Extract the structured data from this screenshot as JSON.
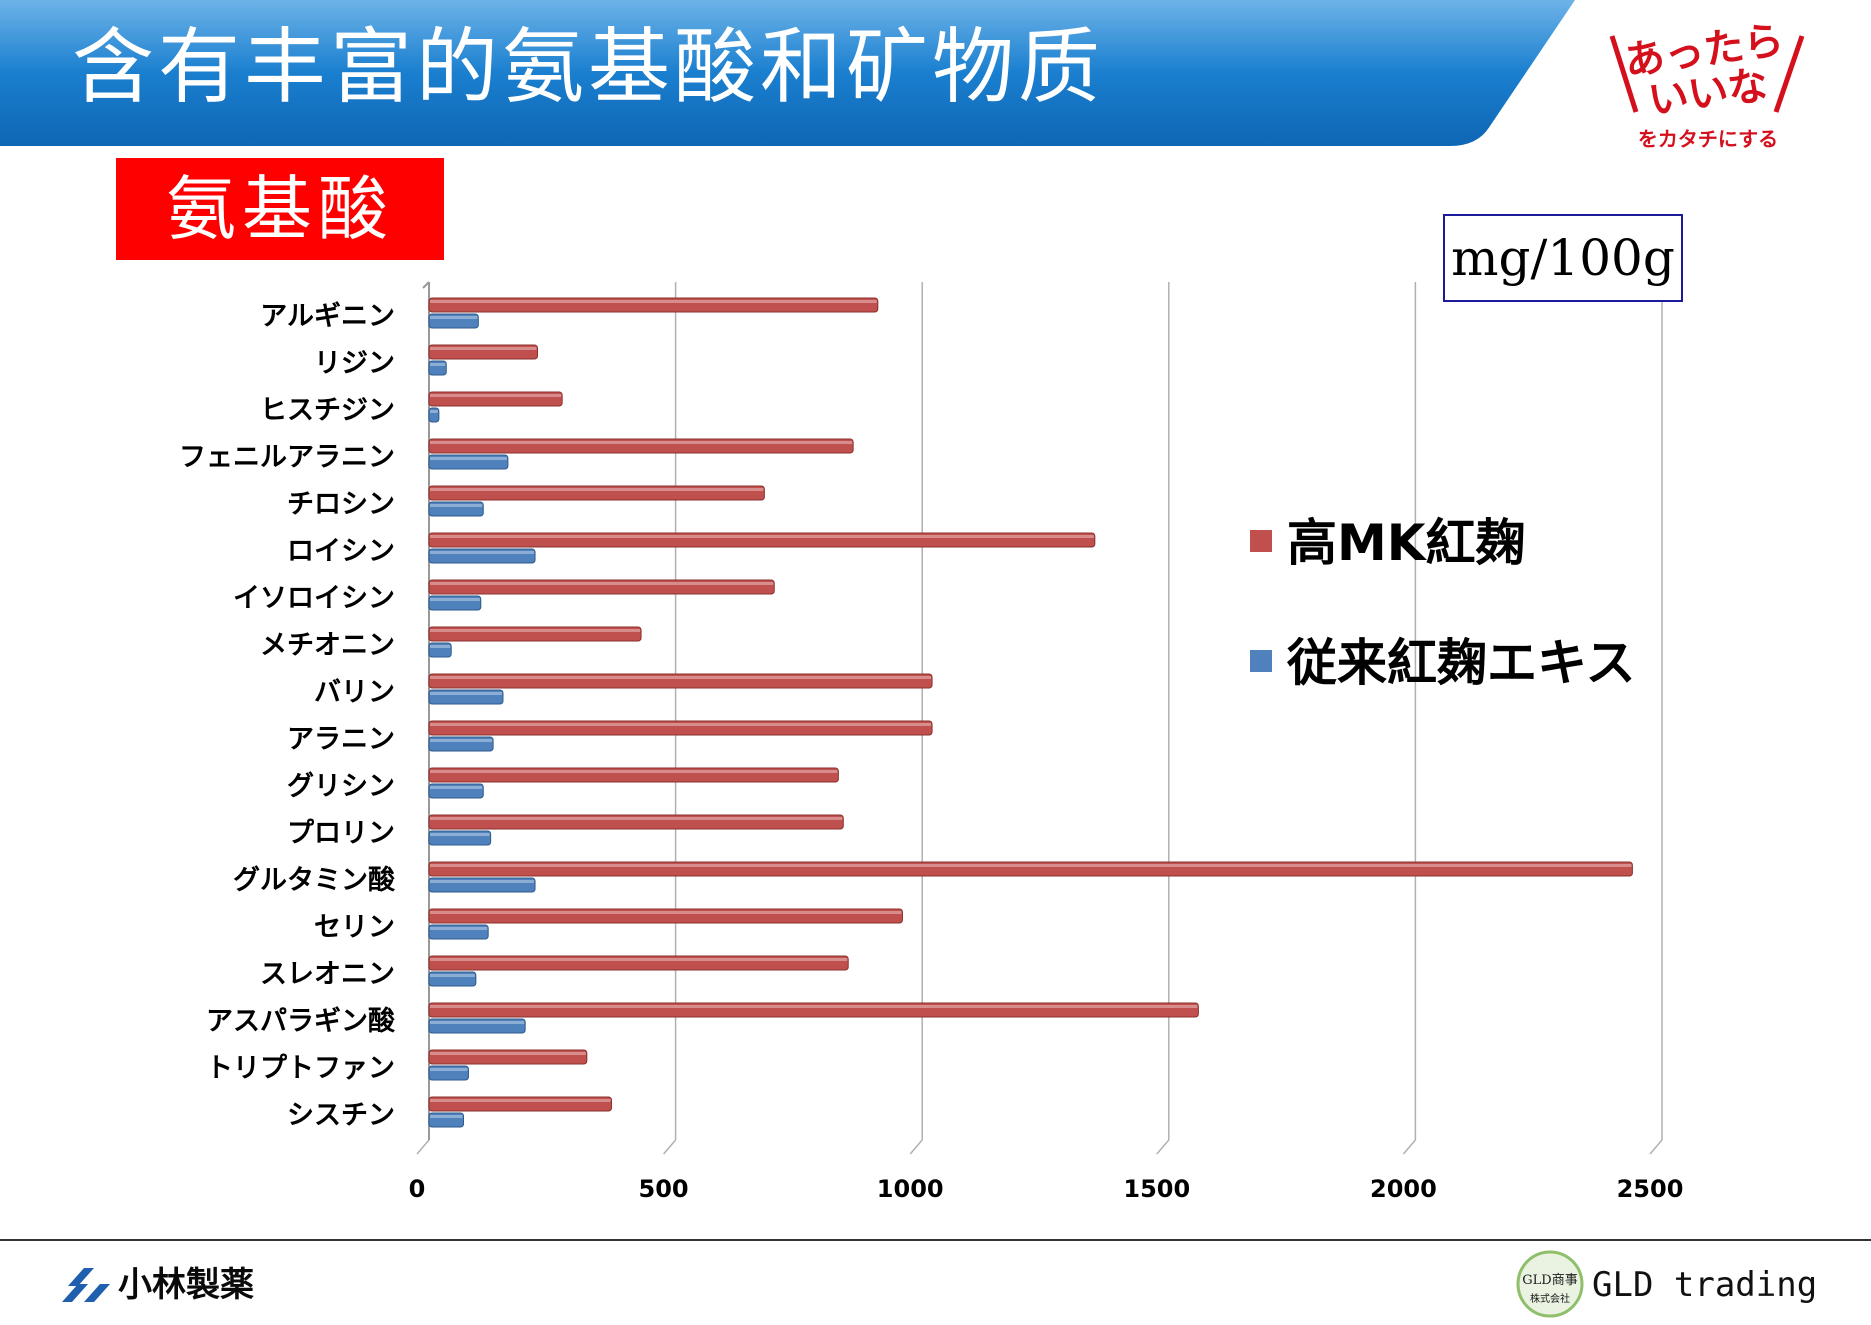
{
  "header": {
    "title": "含有丰富的氨基酸和矿物质",
    "title_bg_color": "#1a7fcf",
    "logo_text": [
      "あったら",
      "いいな",
      "をカタチにする"
    ],
    "logo_color": "#d4101c"
  },
  "section": {
    "label": "氨基酸",
    "label_bg_color": "#ff0000"
  },
  "unit_label": "mg/100g",
  "chart_data": {
    "type": "bar",
    "orientation": "horizontal",
    "categories": [
      "アルギニン",
      "リジン",
      "ヒスチジン",
      "フェニルアラニン",
      "チロシン",
      "ロイシン",
      "イソロイシン",
      "メチオニン",
      "バリン",
      "アラニン",
      "グリシン",
      "プロリン",
      "グルタミン酸",
      "セリン",
      "スレオニン",
      "アスパラギン酸",
      "トリプトファン",
      "シスチン"
    ],
    "series": [
      {
        "name": "高MK紅麹",
        "color": "#c0504d",
        "values": [
          910,
          220,
          270,
          860,
          680,
          1350,
          700,
          430,
          1020,
          1020,
          830,
          840,
          2440,
          960,
          850,
          1560,
          320,
          370
        ]
      },
      {
        "name": "従来紅麹エキス",
        "color": "#4f81bd",
        "values": [
          100,
          35,
          20,
          160,
          110,
          215,
          105,
          45,
          150,
          130,
          110,
          125,
          215,
          120,
          95,
          195,
          80,
          70
        ]
      }
    ],
    "xlim": [
      0,
      2500
    ],
    "x_ticks": [
      0,
      500,
      1000,
      1500,
      2000,
      2500
    ],
    "grid": true,
    "legend_position": "right"
  },
  "footer": {
    "company": "小林製薬",
    "partner": "GLD trading",
    "partner_logo_text": [
      "GLD商事",
      "株式会社"
    ]
  }
}
